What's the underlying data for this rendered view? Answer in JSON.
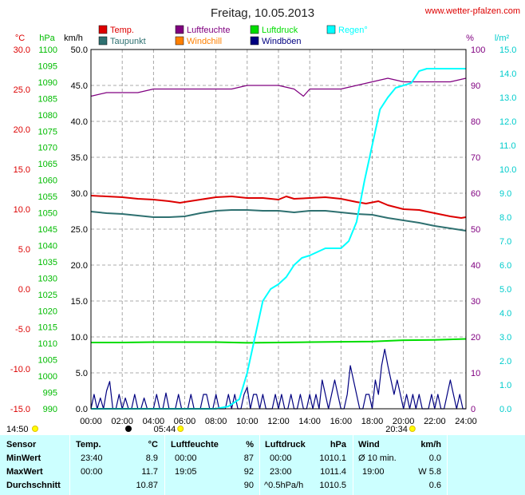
{
  "title": "Freitag, 10.05.2013",
  "site": "www.wetter-pfalzen.com",
  "colors": {
    "temp": "#dd0000",
    "dew": "#2e7070",
    "humidity": "#800080",
    "windchill": "#ff8000",
    "pressure": "#00dd00",
    "gust": "#000080",
    "rain": "#00ffff",
    "axis_pressure": "#00bb00",
    "axis_mm": "#00cccc",
    "axis_temp": "#dd0000",
    "axis_kmh": "#000000",
    "stats_bg": "#ccffff"
  },
  "legend": [
    {
      "label": "Temp.",
      "color": "#dd0000"
    },
    {
      "label": "Luftfeuchte",
      "color": "#800080"
    },
    {
      "label": "Luftdruck",
      "color": "#00dd00"
    },
    {
      "label": "Regen°",
      "color": "#00ffff"
    },
    {
      "label": "Taupunkt",
      "color": "#2e7070"
    },
    {
      "label": "Windchill",
      "color": "#ff8000"
    },
    {
      "label": "Windböen",
      "color": "#000080"
    }
  ],
  "axis_units": {
    "temp": "°C",
    "pressure": "hPa",
    "wind": "km/h",
    "humidity": "%",
    "rain": "l/m²"
  },
  "chart_data": {
    "type": "line",
    "x_ticks": [
      "00:00",
      "02:00",
      "04:00",
      "06:00",
      "08:00",
      "10:00",
      "12:00",
      "14:00",
      "16:00",
      "18:00",
      "20:00",
      "22:00",
      "24:00"
    ],
    "x_range_h": [
      0,
      24
    ],
    "axes": {
      "temp_c": {
        "range": [
          -15,
          30
        ],
        "ticks": [
          "30.0",
          "25.0",
          "20.0",
          "15.0",
          "10.0",
          "5.0",
          "0.0",
          "-5.0",
          "-10.0",
          "-15.0"
        ]
      },
      "pressure_hpa": {
        "range": [
          990,
          1100
        ],
        "ticks": [
          "1100",
          "1095",
          "1090",
          "1085",
          "1080",
          "1075",
          "1070",
          "1065",
          "1060",
          "1055",
          "1050",
          "1045",
          "1040",
          "1035",
          "1030",
          "1025",
          "1020",
          "1015",
          "1010",
          "1005",
          "1000",
          "995",
          "990"
        ]
      },
      "wind_kmh": {
        "range": [
          0,
          50
        ],
        "ticks": [
          "50.0",
          "45.0",
          "40.0",
          "35.0",
          "30.0",
          "25.0",
          "20.0",
          "15.0",
          "10.0",
          "5.0",
          "0.0"
        ]
      },
      "humidity_pct": {
        "range": [
          0,
          100
        ],
        "ticks": [
          "100",
          "90",
          "80",
          "70",
          "60",
          "50",
          "40",
          "30",
          "20",
          "10",
          "0"
        ]
      },
      "rain_lm2": {
        "range": [
          0,
          15
        ],
        "ticks": [
          "15.0",
          "14.0",
          "13.0",
          "12.0",
          "11.0",
          "10.0",
          "9.0",
          "8.0",
          "7.0",
          "6.0",
          "5.0",
          "4.0",
          "3.0",
          "2.0",
          "1.0",
          "0.0"
        ]
      }
    },
    "series": [
      {
        "name": "Temp.",
        "axis": "temp_c",
        "color": "#dd0000",
        "points": [
          [
            0,
            11.7
          ],
          [
            1,
            11.6
          ],
          [
            2,
            11.5
          ],
          [
            3,
            11.3
          ],
          [
            4,
            11.2
          ],
          [
            5,
            11.0
          ],
          [
            5.7,
            10.8
          ],
          [
            6,
            10.9
          ],
          [
            7,
            11.2
          ],
          [
            8,
            11.5
          ],
          [
            9,
            11.6
          ],
          [
            10,
            11.4
          ],
          [
            11,
            11.4
          ],
          [
            12,
            11.2
          ],
          [
            12.5,
            11.6
          ],
          [
            13,
            11.3
          ],
          [
            14,
            11.4
          ],
          [
            15,
            11.5
          ],
          [
            16,
            11.3
          ],
          [
            17,
            10.9
          ],
          [
            17.6,
            10.7
          ],
          [
            18.4,
            11.0
          ],
          [
            19,
            10.5
          ],
          [
            20,
            10.0
          ],
          [
            21,
            9.9
          ],
          [
            22,
            9.5
          ],
          [
            23,
            9.1
          ],
          [
            23.7,
            8.9
          ],
          [
            24,
            9.0
          ]
        ]
      },
      {
        "name": "Taupunkt",
        "axis": "temp_c",
        "color": "#2e7070",
        "points": [
          [
            0,
            9.7
          ],
          [
            1,
            9.5
          ],
          [
            2,
            9.4
          ],
          [
            3,
            9.2
          ],
          [
            4,
            9.0
          ],
          [
            5,
            9.0
          ],
          [
            6,
            9.1
          ],
          [
            7,
            9.5
          ],
          [
            8,
            9.8
          ],
          [
            9,
            9.9
          ],
          [
            10,
            9.9
          ],
          [
            11,
            9.8
          ],
          [
            12,
            9.8
          ],
          [
            13,
            9.6
          ],
          [
            14,
            9.8
          ],
          [
            15,
            9.8
          ],
          [
            16,
            9.6
          ],
          [
            17,
            9.4
          ],
          [
            18,
            9.3
          ],
          [
            19,
            8.9
          ],
          [
            20,
            8.6
          ],
          [
            21,
            8.3
          ],
          [
            22,
            7.9
          ],
          [
            23,
            7.6
          ],
          [
            24,
            7.3
          ]
        ]
      },
      {
        "name": "Luftfeuchte",
        "axis": "humidity_pct",
        "color": "#800080",
        "points": [
          [
            0,
            87
          ],
          [
            1,
            88
          ],
          [
            2,
            88
          ],
          [
            3,
            88
          ],
          [
            4,
            89
          ],
          [
            5,
            89
          ],
          [
            6,
            89
          ],
          [
            7,
            89
          ],
          [
            8,
            89
          ],
          [
            9,
            89
          ],
          [
            10,
            90
          ],
          [
            11,
            90
          ],
          [
            12,
            90
          ],
          [
            13,
            89
          ],
          [
            13.6,
            87
          ],
          [
            14,
            89
          ],
          [
            15,
            89
          ],
          [
            16,
            89
          ],
          [
            17,
            90
          ],
          [
            18,
            91
          ],
          [
            19,
            92
          ],
          [
            20,
            91
          ],
          [
            21,
            91
          ],
          [
            22,
            91
          ],
          [
            23,
            91
          ],
          [
            24,
            92
          ]
        ]
      },
      {
        "name": "Luftdruck",
        "axis": "pressure_hpa",
        "color": "#00dd00",
        "points": [
          [
            0,
            1010.3
          ],
          [
            2,
            1010.3
          ],
          [
            4,
            1010.4
          ],
          [
            6,
            1010.4
          ],
          [
            8,
            1010.4
          ],
          [
            10,
            1010.2
          ],
          [
            12,
            1010.3
          ],
          [
            14,
            1010.4
          ],
          [
            16,
            1010.5
          ],
          [
            18,
            1010.6
          ],
          [
            20,
            1011.0
          ],
          [
            22,
            1011.1
          ],
          [
            24,
            1011.4
          ]
        ]
      },
      {
        "name": "Regen°",
        "axis": "rain_lm2",
        "color": "#00ffff",
        "points": [
          [
            0,
            0
          ],
          [
            8.0,
            0
          ],
          [
            8.8,
            0.1
          ],
          [
            9.5,
            0.4
          ],
          [
            10.0,
            1.5
          ],
          [
            10.5,
            3.0
          ],
          [
            11.0,
            4.5
          ],
          [
            11.5,
            5.0
          ],
          [
            12.0,
            5.2
          ],
          [
            12.5,
            5.5
          ],
          [
            13.0,
            6.0
          ],
          [
            13.5,
            6.3
          ],
          [
            14.0,
            6.4
          ],
          [
            15.0,
            6.7
          ],
          [
            16.0,
            6.7
          ],
          [
            16.5,
            7.0
          ],
          [
            17.0,
            7.8
          ],
          [
            17.5,
            9.5
          ],
          [
            18.0,
            11.0
          ],
          [
            18.5,
            12.5
          ],
          [
            19.0,
            13.0
          ],
          [
            19.5,
            13.4
          ],
          [
            20.0,
            13.5
          ],
          [
            20.5,
            13.6
          ],
          [
            21.0,
            14.1
          ],
          [
            21.5,
            14.2
          ],
          [
            22.0,
            14.2
          ],
          [
            24.0,
            14.2
          ]
        ]
      },
      {
        "name": "Windböen",
        "axis": "wind_kmh",
        "color": "#000080",
        "points": [
          [
            0,
            0
          ],
          [
            0.2,
            2.0
          ],
          [
            0.4,
            0
          ],
          [
            0.6,
            1.5
          ],
          [
            0.8,
            0
          ],
          [
            1.0,
            2.5
          ],
          [
            1.2,
            3.8
          ],
          [
            1.4,
            0
          ],
          [
            1.6,
            0
          ],
          [
            1.8,
            2.0
          ],
          [
            2.0,
            0
          ],
          [
            2.2,
            1.5
          ],
          [
            2.4,
            0
          ],
          [
            2.6,
            0
          ],
          [
            2.8,
            2.0
          ],
          [
            3.0,
            0
          ],
          [
            3.2,
            0
          ],
          [
            3.4,
            1.5
          ],
          [
            3.6,
            0
          ],
          [
            3.8,
            0
          ],
          [
            4.0,
            0
          ],
          [
            4.2,
            2.0
          ],
          [
            4.4,
            0
          ],
          [
            4.6,
            0
          ],
          [
            4.8,
            2.2
          ],
          [
            5.0,
            0
          ],
          [
            5.2,
            0
          ],
          [
            5.4,
            0
          ],
          [
            5.6,
            2.0
          ],
          [
            5.8,
            0
          ],
          [
            6.0,
            0
          ],
          [
            6.2,
            0
          ],
          [
            6.4,
            2.0
          ],
          [
            6.6,
            0
          ],
          [
            6.8,
            0
          ],
          [
            7.0,
            0
          ],
          [
            7.2,
            2.0
          ],
          [
            7.4,
            2.0
          ],
          [
            7.6,
            0
          ],
          [
            7.8,
            0
          ],
          [
            8.0,
            2.0
          ],
          [
            8.2,
            0
          ],
          [
            8.4,
            0
          ],
          [
            8.6,
            0
          ],
          [
            8.8,
            2.0
          ],
          [
            9.0,
            0
          ],
          [
            9.2,
            2.0
          ],
          [
            9.4,
            0
          ],
          [
            9.6,
            0
          ],
          [
            9.8,
            2.0
          ],
          [
            10.0,
            3.0
          ],
          [
            10.2,
            0
          ],
          [
            10.4,
            2.0
          ],
          [
            10.6,
            2.0
          ],
          [
            10.8,
            0
          ],
          [
            11.0,
            2.0
          ],
          [
            11.2,
            0
          ],
          [
            11.4,
            0
          ],
          [
            11.6,
            0
          ],
          [
            11.8,
            2.0
          ],
          [
            12.0,
            0
          ],
          [
            12.2,
            2.0
          ],
          [
            12.4,
            0
          ],
          [
            12.6,
            0
          ],
          [
            12.8,
            2.0
          ],
          [
            13.0,
            0
          ],
          [
            13.2,
            0
          ],
          [
            13.4,
            2.0
          ],
          [
            13.6,
            0
          ],
          [
            13.8,
            0
          ],
          [
            14.0,
            2.0
          ],
          [
            14.2,
            0
          ],
          [
            14.4,
            2.0
          ],
          [
            14.6,
            0
          ],
          [
            14.8,
            4.0
          ],
          [
            15.0,
            2.0
          ],
          [
            15.2,
            0
          ],
          [
            15.4,
            2.0
          ],
          [
            15.6,
            4.0
          ],
          [
            15.8,
            2.0
          ],
          [
            16.0,
            0
          ],
          [
            16.2,
            0
          ],
          [
            16.4,
            2.0
          ],
          [
            16.6,
            6.0
          ],
          [
            16.8,
            4.0
          ],
          [
            17.0,
            2.0
          ],
          [
            17.2,
            0
          ],
          [
            17.4,
            0
          ],
          [
            17.6,
            2.0
          ],
          [
            17.8,
            2.0
          ],
          [
            18.0,
            0
          ],
          [
            18.2,
            4.0
          ],
          [
            18.4,
            2.0
          ],
          [
            18.6,
            6.0
          ],
          [
            18.8,
            8.3
          ],
          [
            19.0,
            6.0
          ],
          [
            19.2,
            4.0
          ],
          [
            19.4,
            2.0
          ],
          [
            19.6,
            4.0
          ],
          [
            19.8,
            2.0
          ],
          [
            20.0,
            0
          ],
          [
            20.2,
            2.0
          ],
          [
            20.4,
            0
          ],
          [
            20.6,
            2.0
          ],
          [
            20.8,
            0
          ],
          [
            21.0,
            2.0
          ],
          [
            21.2,
            0
          ],
          [
            21.4,
            0
          ],
          [
            21.6,
            0
          ],
          [
            21.8,
            2.0
          ],
          [
            22.0,
            0
          ],
          [
            22.2,
            2.0
          ],
          [
            22.4,
            0
          ],
          [
            22.6,
            0
          ],
          [
            22.8,
            2.0
          ],
          [
            23.0,
            4.0
          ],
          [
            23.2,
            2.0
          ],
          [
            23.4,
            0
          ],
          [
            23.6,
            2.0
          ],
          [
            23.8,
            0
          ],
          [
            24.0,
            0
          ]
        ]
      }
    ]
  },
  "sun": {
    "rise": "05:44",
    "set": "20:34",
    "day_start": "14:50",
    "rise_h": 5.73,
    "set_h": 20.57,
    "moon_h": 2.4
  },
  "stats": {
    "headers": {
      "sensor": "Sensor",
      "temp": "Temp.",
      "temp_unit": "°C",
      "hum": "Luftfeuchte",
      "hum_unit": "%",
      "press": "Luftdruck",
      "press_unit": "hPa",
      "wind": "Wind",
      "wind_unit": "km/h"
    },
    "rows": [
      {
        "label": "MinWert",
        "t_time": "23:40",
        "t_val": "8.9",
        "h_time": "00:00",
        "h_val": "87",
        "p_time": "00:00",
        "p_val": "1010.1",
        "w_time": "Ø 10 min.",
        "w_val": "0.0"
      },
      {
        "label": "MaxWert",
        "t_time": "00:00",
        "t_val": "11.7",
        "h_time": "19:05",
        "h_val": "92",
        "p_time": "23:00",
        "p_val": "1011.4",
        "w_time": "19:00",
        "w_val": "W 5.8"
      },
      {
        "label": "Durchschnitt",
        "t_time": "",
        "t_val": "10.87",
        "h_time": "",
        "h_val": "90",
        "p_time": "^0.5hPa/h",
        "p_val": "1010.5",
        "w_time": "",
        "w_val": "0.6"
      }
    ]
  }
}
